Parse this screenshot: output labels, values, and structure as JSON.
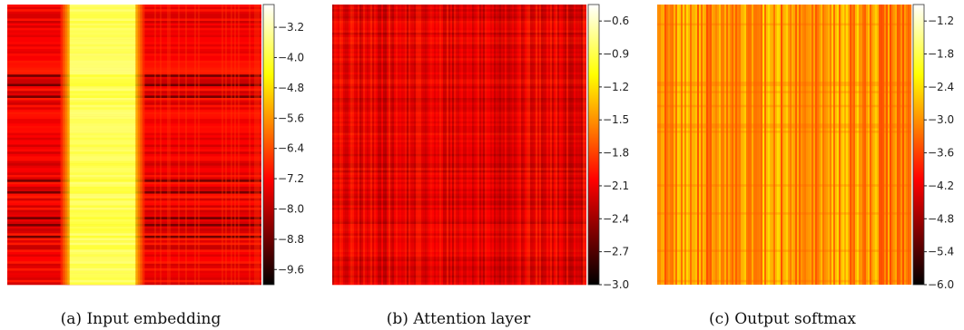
{
  "chart_data": [
    {
      "type": "heatmap",
      "caption": "(a) Input embedding",
      "colormap": "hot",
      "pattern": "vertical-band",
      "colorbar": {
        "range": [
          -10.0,
          -2.6
        ],
        "ticks": [
          "−3.2",
          "−4.0",
          "−4.8",
          "−5.6",
          "−6.4",
          "−7.2",
          "−8.0",
          "−8.8",
          "−9.6"
        ],
        "tick_values": [
          -3.2,
          -4.0,
          -4.8,
          -5.6,
          -6.4,
          -7.2,
          -8.0,
          -8.8,
          -9.6
        ]
      }
    },
    {
      "type": "heatmap",
      "caption": "(b) Attention layer",
      "colormap": "hot",
      "pattern": "grid-noise",
      "colorbar": {
        "range": [
          -3.0,
          -0.45
        ],
        "ticks": [
          "−0.6",
          "−0.9",
          "−1.2",
          "−1.5",
          "−1.8",
          "−2.1",
          "−2.4",
          "−2.7",
          "−3.0"
        ],
        "tick_values": [
          -0.6,
          -0.9,
          -1.2,
          -1.5,
          -1.8,
          -2.1,
          -2.4,
          -2.7,
          -3.0
        ]
      }
    },
    {
      "type": "heatmap",
      "caption": "(c) Output softmax",
      "colormap": "hot",
      "pattern": "column-stripes",
      "colorbar": {
        "range": [
          -6.0,
          -0.9
        ],
        "ticks": [
          "−1.2",
          "−1.8",
          "−2.4",
          "−3.0",
          "−3.6",
          "−4.2",
          "−4.8",
          "−5.4",
          "−6.0"
        ],
        "tick_values": [
          -1.2,
          -1.8,
          -2.4,
          -3.0,
          -3.6,
          -4.2,
          -4.8,
          -5.4,
          -6.0
        ]
      }
    }
  ]
}
